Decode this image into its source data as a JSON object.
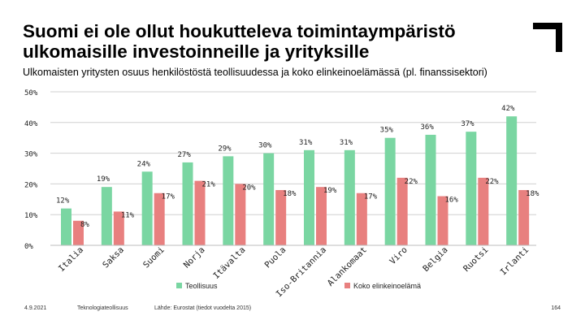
{
  "page": {
    "title": "Suomi ei ole ollut houkutteleva toimintaympäristö ulkomaisille investoinneille ja yrityksille",
    "subtitle": "Ulkomaisten yritysten osuus henkilöstöstä teollisuudessa ja koko elinkeinoelämässä (pl. finanssisektori)",
    "footer_date": "4.9.2021",
    "footer_org": "Teknologiateollisuus",
    "footer_source": "Lähde: Eurostat (tiedot vuodelta 2015)",
    "page_number": "164"
  },
  "chart_data": {
    "type": "bar",
    "title": "Ulkomaisten yritysten osuus henkilöstöstä teollisuudessa ja koko elinkeinoelämässä (pl. finanssisektori)",
    "categories": [
      "Italia",
      "Saksa",
      "Suomi",
      "Norja",
      "Itävalta",
      "Puola",
      "Iso-Britannia",
      "Alankomaat",
      "Viro",
      "Belgia",
      "Ruotsi",
      "Irlanti"
    ],
    "series": [
      {
        "name": "Teollisuus",
        "color": "#7ad6a2",
        "values": [
          12,
          19,
          24,
          27,
          29,
          30,
          31,
          31,
          35,
          36,
          37,
          42
        ],
        "labels": [
          "12%",
          "19%",
          "24%",
          "27%",
          "29%",
          "30%",
          "31%",
          "31%",
          "35%",
          "36%",
          "37%",
          "42%"
        ]
      },
      {
        "name": "Koko elinkeinoelämä",
        "color": "#e8807f",
        "values": [
          8,
          11,
          17,
          21,
          20,
          18,
          19,
          17,
          22,
          16,
          22,
          18
        ],
        "labels": [
          "8%",
          "11%",
          "17%",
          "21%",
          "20%",
          "18%",
          "19%",
          "17%",
          "22%",
          "16%",
          "22%",
          "18%"
        ]
      }
    ],
    "ylim": [
      0,
      50
    ],
    "yticks": [
      "0%",
      "10%",
      "20%",
      "30%",
      "40%",
      "50%"
    ],
    "ytick_values": [
      0,
      10,
      20,
      30,
      40,
      50
    ],
    "grid": true,
    "legend": "bottom"
  }
}
